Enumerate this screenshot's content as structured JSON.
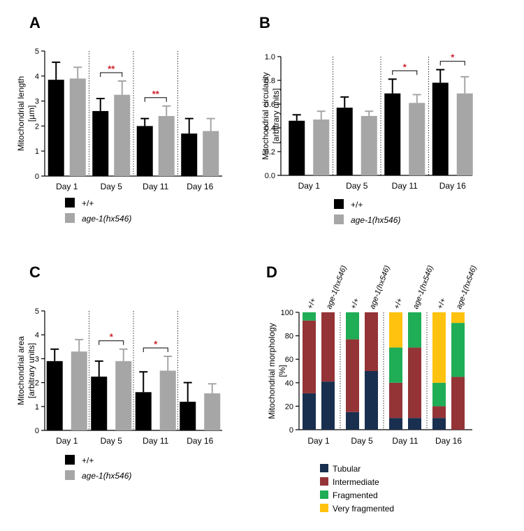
{
  "colors": {
    "wt": "#000000",
    "mutant": "#a6a6a7",
    "tubular": "#192f4f",
    "intermediate": "#943437",
    "fragmented": "#1fad56",
    "very_fragmented": "#ffc20e",
    "significance": "#d0202a"
  },
  "chart_data": [
    {
      "panel": "A",
      "type": "bar",
      "ylabel_lines": [
        "Mitochondrial length",
        "[µm]"
      ],
      "ylim": [
        0,
        5
      ],
      "yticks": [
        "0",
        "1",
        "2",
        "3",
        "4",
        "5"
      ],
      "categories": [
        "Day 1",
        "Day 5",
        "Day 11",
        "Day 16"
      ],
      "series": [
        {
          "name": "+/+",
          "values": [
            3.85,
            2.6,
            2.0,
            1.7
          ],
          "errors": [
            0.7,
            0.5,
            0.3,
            0.6
          ]
        },
        {
          "name": "age-1(hx546)",
          "values": [
            3.9,
            3.25,
            2.4,
            1.8
          ],
          "errors": [
            0.45,
            0.55,
            0.4,
            0.5
          ]
        }
      ],
      "annotations": [
        {
          "category": "Day 5",
          "label": "**"
        },
        {
          "category": "Day 11",
          "label": "**"
        }
      ],
      "legend": [
        "+/+",
        "age-1(hx546)"
      ]
    },
    {
      "panel": "B",
      "type": "bar",
      "ylabel_lines": [
        "Mitochondrial circularity",
        "[arbitrary units]"
      ],
      "ylim": [
        0,
        1
      ],
      "yticks": [
        "0.0",
        "0.2",
        "0.4",
        "0.6",
        "0.8",
        "1.0"
      ],
      "categories": [
        "Day 1",
        "Day 5",
        "Day 11",
        "Day 16"
      ],
      "series": [
        {
          "name": "+/+",
          "values": [
            0.46,
            0.57,
            0.69,
            0.78
          ],
          "errors": [
            0.05,
            0.09,
            0.12,
            0.11
          ]
        },
        {
          "name": "age-1(hx546)",
          "values": [
            0.47,
            0.5,
            0.61,
            0.69
          ],
          "errors": [
            0.07,
            0.04,
            0.07,
            0.14
          ]
        }
      ],
      "annotations": [
        {
          "category": "Day 11",
          "label": "*"
        },
        {
          "category": "Day 16",
          "label": "*"
        }
      ],
      "legend": [
        "+/+",
        "age-1(hx546)"
      ]
    },
    {
      "panel": "C",
      "type": "bar",
      "ylabel_lines": [
        "Mitochondrial area",
        "[arbitrary units]"
      ],
      "ylim": [
        0,
        5
      ],
      "yticks": [
        "0",
        "1",
        "2",
        "3",
        "4",
        "5"
      ],
      "categories": [
        "Day 1",
        "Day 5",
        "Day 11",
        "Day 16"
      ],
      "series": [
        {
          "name": "+/+",
          "values": [
            2.9,
            2.25,
            1.6,
            1.2
          ],
          "errors": [
            0.5,
            0.65,
            0.85,
            0.8
          ]
        },
        {
          "name": "age-1(hx546)",
          "values": [
            3.3,
            2.9,
            2.5,
            1.55
          ],
          "errors": [
            0.5,
            0.5,
            0.6,
            0.4
          ]
        }
      ],
      "annotations": [
        {
          "category": "Day 5",
          "label": "*"
        },
        {
          "category": "Day 11",
          "label": "*"
        }
      ],
      "legend": [
        "+/+",
        "age-1(hx546)"
      ]
    },
    {
      "panel": "D",
      "type": "stacked-bar",
      "ylabel_lines": [
        "Mitochondrial  morphology",
        "[%]"
      ],
      "ylim": [
        0,
        100
      ],
      "yticks": [
        "0",
        "20",
        "40",
        "60",
        "80",
        "100"
      ],
      "categories": [
        "Day 1",
        "Day 5",
        "Day 11",
        "Day 16"
      ],
      "bar_labels": [
        "+/+",
        "age-1(hx546)",
        "+/+",
        "age-1(hx546)",
        "+/+",
        "age-1(hx546)",
        "+/+",
        "age-1(hx546)"
      ],
      "stack_names": [
        "Tubular",
        "Intermediate",
        "Fragmented",
        "Very fragmented"
      ],
      "bars": [
        [
          31,
          62,
          7,
          0
        ],
        [
          41,
          59,
          0,
          0
        ],
        [
          15,
          62,
          23,
          0
        ],
        [
          50,
          50,
          0,
          0
        ],
        [
          10,
          30,
          30,
          30
        ],
        [
          10,
          60,
          30,
          0
        ],
        [
          10,
          10,
          20,
          60
        ],
        [
          0,
          45,
          46,
          9
        ]
      ],
      "legend": [
        "Tubular",
        "Intermediate",
        "Fragmented",
        "Very fragmented"
      ]
    }
  ]
}
